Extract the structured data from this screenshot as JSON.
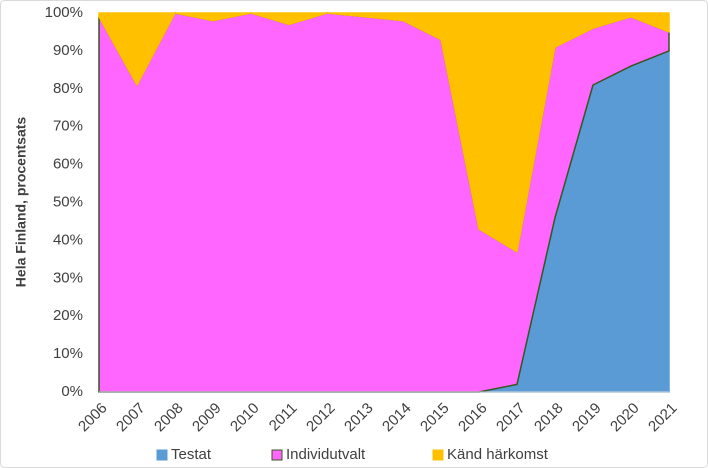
{
  "chart_data": {
    "type": "stacked-area",
    "y_axis_label": "Hela Finland, procentsats",
    "categories": [
      "2006",
      "2007",
      "2008",
      "2009",
      "2010",
      "2011",
      "2012",
      "2013",
      "2014",
      "2015",
      "2016",
      "2017",
      "2018",
      "2019",
      "2020",
      "2021"
    ],
    "series": [
      {
        "name": "Testat",
        "color": "#5b9bd5",
        "stroke": "#5b9bd5",
        "values": [
          0,
          0,
          0,
          0,
          0,
          0,
          0,
          0,
          0,
          0,
          0,
          2,
          46,
          81,
          86,
          90
        ]
      },
      {
        "name": "Individutvalt",
        "color": "#ff66ff",
        "stroke": "#375623",
        "values": [
          99,
          81,
          100,
          98,
          100,
          97,
          100,
          99,
          98,
          93,
          43,
          35,
          45,
          15,
          13,
          5
        ]
      },
      {
        "name": "Känd härkomst",
        "color": "#ffc000",
        "stroke": "#ffc000",
        "values": [
          1,
          19,
          0,
          2,
          0,
          3,
          0,
          1,
          2,
          7,
          57,
          63,
          9,
          4,
          1,
          5
        ]
      }
    ],
    "ylim": [
      0,
      100
    ],
    "yticks": [
      {
        "value": 0,
        "label": "0%"
      },
      {
        "value": 10,
        "label": "10%"
      },
      {
        "value": 20,
        "label": "20%"
      },
      {
        "value": 30,
        "label": "30%"
      },
      {
        "value": 40,
        "label": "40%"
      },
      {
        "value": 50,
        "label": "50%"
      },
      {
        "value": 60,
        "label": "60%"
      },
      {
        "value": 70,
        "label": "70%"
      },
      {
        "value": 80,
        "label": "80%"
      },
      {
        "value": 90,
        "label": "90%"
      },
      {
        "value": 100,
        "label": "100%"
      }
    ],
    "grid": false,
    "legend": "bottom"
  }
}
